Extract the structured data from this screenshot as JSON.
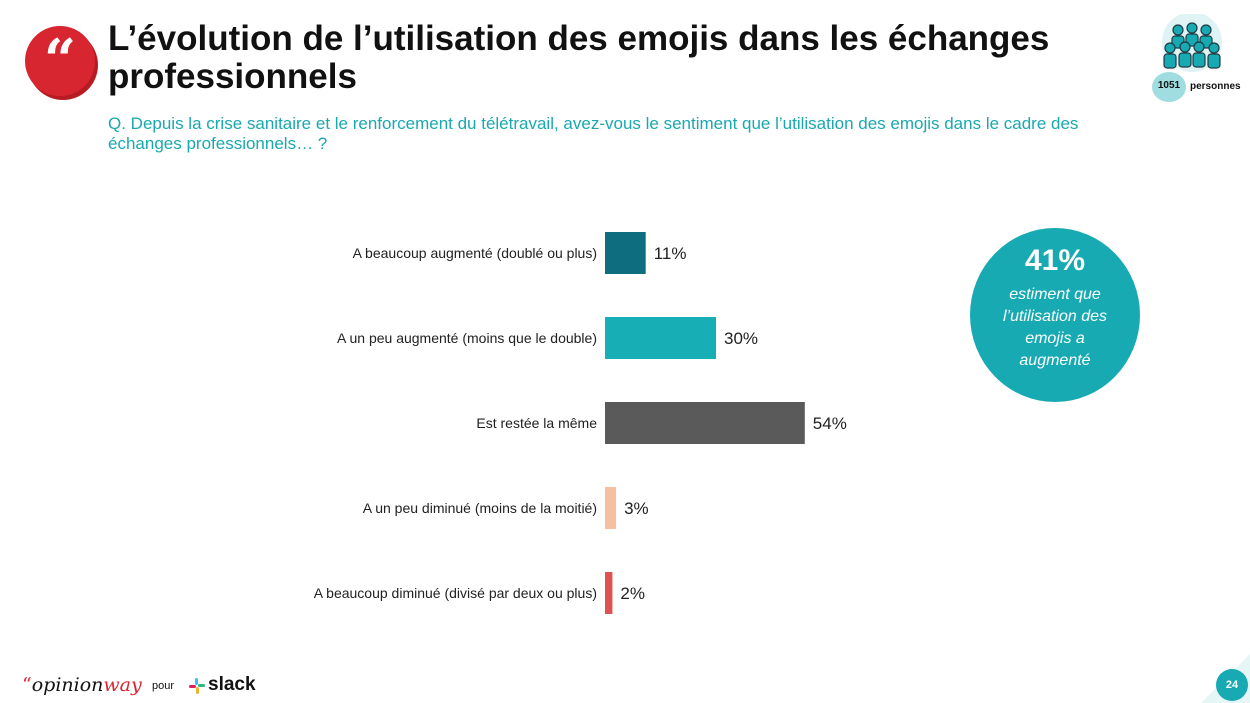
{
  "header": {
    "quote_mark": "“",
    "title": "L’évolution de l’utilisation des emojis dans les échanges professionnels",
    "subtitle": "Q. Depuis la crise sanitaire et le renforcement du télétravail, avez-vous le sentiment que l’utilisation des emojis dans le cadre des échanges professionnels… ?",
    "sample_count": "1051",
    "sample_label": "personnes"
  },
  "chart_data": {
    "type": "bar",
    "orientation": "horizontal",
    "categories": [
      "A beaucoup augmenté (doublé ou plus)",
      "A un peu augmenté (moins que le double)",
      "Est restée la même",
      "A un peu diminué (moins de la moitié)",
      "A beaucoup diminué (divisé par deux ou plus)"
    ],
    "values": [
      11,
      30,
      54,
      3,
      2
    ],
    "value_labels": [
      "11%",
      "30%",
      "54%",
      "3%",
      "2%"
    ],
    "colors": [
      "#0e6e80",
      "#17aeb6",
      "#5a5a5a",
      "#f4c0a0",
      "#e05252"
    ],
    "xlim": [
      0,
      100
    ],
    "grid": false,
    "title": "",
    "xlabel": "",
    "ylabel": ""
  },
  "callout": {
    "value": "41%",
    "text": "estiment que l’utilisation des emojis a augmenté"
  },
  "footer": {
    "brand_quote": "“",
    "brand_opinion": "opinion",
    "brand_way": "way",
    "pour": "pour",
    "partner": "slack",
    "page_number": "24"
  },
  "colors": {
    "accent": "#17aab2",
    "brand_red": "#d7262f"
  },
  "icons": [
    "quote-icon",
    "people-group-icon",
    "slack-logo-icon"
  ]
}
